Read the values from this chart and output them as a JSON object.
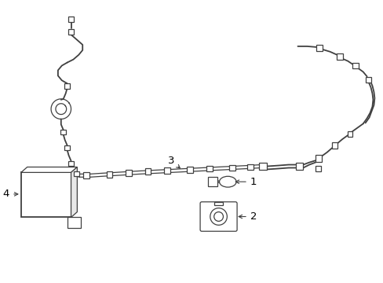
{
  "bg_color": "#ffffff",
  "line_color": "#404040",
  "label_color": "#000000",
  "lw_main": 1.3,
  "lw_thin": 0.9
}
